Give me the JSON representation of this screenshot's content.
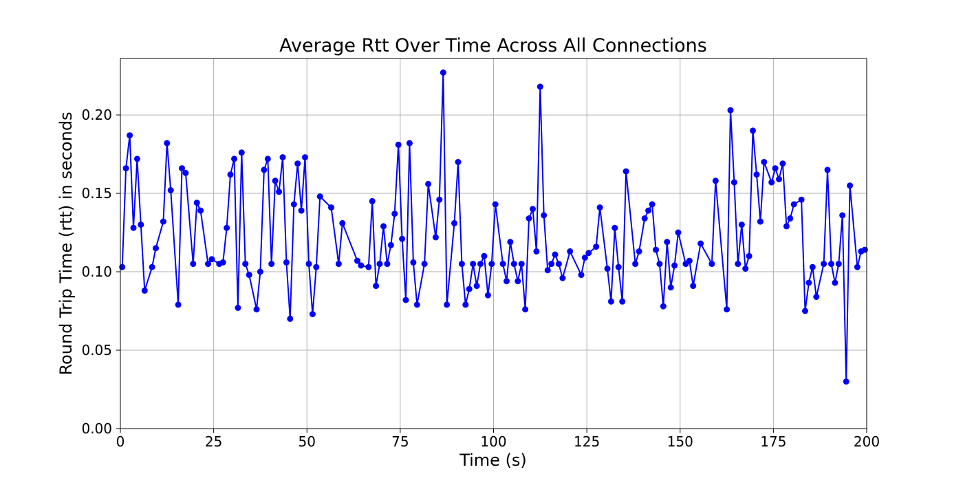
{
  "chart_data": {
    "type": "line",
    "title": "Average Rtt Over Time Across All Connections",
    "xlabel": "Time (s)",
    "ylabel": "Round Trip Time (rtt) in seconds",
    "xlim": [
      0,
      200
    ],
    "ylim": [
      0,
      0.236
    ],
    "xticks": [
      0,
      25,
      50,
      75,
      100,
      125,
      150,
      175,
      200
    ],
    "yticks": [
      0.0,
      0.05,
      0.1,
      0.15,
      0.2
    ],
    "xtick_labels": [
      "0",
      "25",
      "50",
      "75",
      "100",
      "125",
      "150",
      "175",
      "200"
    ],
    "ytick_labels": [
      "0.00",
      "0.05",
      "0.10",
      "0.15",
      "0.20"
    ],
    "grid": true,
    "series": [
      {
        "color": "#0000ff",
        "marker": "circle",
        "points": [
          [
            0.5,
            0.103
          ],
          [
            1.5,
            0.166
          ],
          [
            2.5,
            0.187
          ],
          [
            3.5,
            0.128
          ],
          [
            4.5,
            0.172
          ],
          [
            5.5,
            0.13
          ],
          [
            6.5,
            0.088
          ],
          [
            8.5,
            0.103
          ],
          [
            9.5,
            0.115
          ],
          [
            11.5,
            0.132
          ],
          [
            12.5,
            0.182
          ],
          [
            13.5,
            0.152
          ],
          [
            15.5,
            0.079
          ],
          [
            16.5,
            0.166
          ],
          [
            17.5,
            0.163
          ],
          [
            19.5,
            0.105
          ],
          [
            20.5,
            0.144
          ],
          [
            21.5,
            0.139
          ],
          [
            23.5,
            0.105
          ],
          [
            24.5,
            0.108
          ],
          [
            26.5,
            0.105
          ],
          [
            27.5,
            0.106
          ],
          [
            28.5,
            0.128
          ],
          [
            29.5,
            0.162
          ],
          [
            30.5,
            0.172
          ],
          [
            31.5,
            0.077
          ],
          [
            32.5,
            0.176
          ],
          [
            33.5,
            0.105
          ],
          [
            34.5,
            0.098
          ],
          [
            36.5,
            0.076
          ],
          [
            37.5,
            0.1
          ],
          [
            38.5,
            0.165
          ],
          [
            39.5,
            0.172
          ],
          [
            40.5,
            0.105
          ],
          [
            41.5,
            0.158
          ],
          [
            42.5,
            0.151
          ],
          [
            43.5,
            0.173
          ],
          [
            44.5,
            0.106
          ],
          [
            45.5,
            0.07
          ],
          [
            46.5,
            0.143
          ],
          [
            47.5,
            0.169
          ],
          [
            48.5,
            0.139
          ],
          [
            49.5,
            0.173
          ],
          [
            50.5,
            0.105
          ],
          [
            51.5,
            0.073
          ],
          [
            52.5,
            0.103
          ],
          [
            53.5,
            0.148
          ],
          [
            56.5,
            0.141
          ],
          [
            58.5,
            0.105
          ],
          [
            59.5,
            0.131
          ],
          [
            63.5,
            0.107
          ],
          [
            64.5,
            0.104
          ],
          [
            66.5,
            0.103
          ],
          [
            67.5,
            0.145
          ],
          [
            68.5,
            0.091
          ],
          [
            69.5,
            0.105
          ],
          [
            70.5,
            0.129
          ],
          [
            71.5,
            0.105
          ],
          [
            72.5,
            0.117
          ],
          [
            73.5,
            0.137
          ],
          [
            74.5,
            0.181
          ],
          [
            75.5,
            0.121
          ],
          [
            76.5,
            0.082
          ],
          [
            77.5,
            0.182
          ],
          [
            78.5,
            0.106
          ],
          [
            79.5,
            0.079
          ],
          [
            81.5,
            0.105
          ],
          [
            82.5,
            0.156
          ],
          [
            84.5,
            0.122
          ],
          [
            85.5,
            0.146
          ],
          [
            86.5,
            0.227
          ],
          [
            87.5,
            0.079
          ],
          [
            89.5,
            0.131
          ],
          [
            90.5,
            0.17
          ],
          [
            91.5,
            0.105
          ],
          [
            92.5,
            0.079
          ],
          [
            93.5,
            0.089
          ],
          [
            94.5,
            0.105
          ],
          [
            95.5,
            0.091
          ],
          [
            96.5,
            0.105
          ],
          [
            97.5,
            0.11
          ],
          [
            98.5,
            0.085
          ],
          [
            99.5,
            0.105
          ],
          [
            100.5,
            0.143
          ],
          [
            102.5,
            0.105
          ],
          [
            103.5,
            0.094
          ],
          [
            104.5,
            0.119
          ],
          [
            105.5,
            0.105
          ],
          [
            106.5,
            0.094
          ],
          [
            107.5,
            0.105
          ],
          [
            108.5,
            0.076
          ],
          [
            109.5,
            0.134
          ],
          [
            110.5,
            0.14
          ],
          [
            111.5,
            0.113
          ],
          [
            112.5,
            0.218
          ],
          [
            113.5,
            0.136
          ],
          [
            114.5,
            0.101
          ],
          [
            115.5,
            0.105
          ],
          [
            116.5,
            0.111
          ],
          [
            117.5,
            0.105
          ],
          [
            118.5,
            0.096
          ],
          [
            120.5,
            0.113
          ],
          [
            123.5,
            0.098
          ],
          [
            124.5,
            0.109
          ],
          [
            125.5,
            0.112
          ],
          [
            127.5,
            0.116
          ],
          [
            128.5,
            0.141
          ],
          [
            130.5,
            0.102
          ],
          [
            131.5,
            0.081
          ],
          [
            132.5,
            0.128
          ],
          [
            133.5,
            0.103
          ],
          [
            134.5,
            0.081
          ],
          [
            135.5,
            0.164
          ],
          [
            138.0,
            0.105
          ],
          [
            139.0,
            0.113
          ],
          [
            140.5,
            0.134
          ],
          [
            141.5,
            0.139
          ],
          [
            142.5,
            0.143
          ],
          [
            143.5,
            0.114
          ],
          [
            144.5,
            0.105
          ],
          [
            145.5,
            0.078
          ],
          [
            146.5,
            0.119
          ],
          [
            147.5,
            0.09
          ],
          [
            148.5,
            0.104
          ],
          [
            149.5,
            0.125
          ],
          [
            151.5,
            0.105
          ],
          [
            152.5,
            0.107
          ],
          [
            153.5,
            0.091
          ],
          [
            155.5,
            0.118
          ],
          [
            158.5,
            0.105
          ],
          [
            159.5,
            0.158
          ],
          [
            162.5,
            0.076
          ],
          [
            163.5,
            0.203
          ],
          [
            164.5,
            0.157
          ],
          [
            165.5,
            0.105
          ],
          [
            166.5,
            0.13
          ],
          [
            167.5,
            0.102
          ],
          [
            168.5,
            0.11
          ],
          [
            169.5,
            0.19
          ],
          [
            170.5,
            0.162
          ],
          [
            171.5,
            0.132
          ],
          [
            172.5,
            0.17
          ],
          [
            174.5,
            0.157
          ],
          [
            175.5,
            0.166
          ],
          [
            176.5,
            0.159
          ],
          [
            177.5,
            0.169
          ],
          [
            178.5,
            0.129
          ],
          [
            179.5,
            0.134
          ],
          [
            180.5,
            0.143
          ],
          [
            182.5,
            0.146
          ],
          [
            183.5,
            0.075
          ],
          [
            184.5,
            0.093
          ],
          [
            185.5,
            0.103
          ],
          [
            186.5,
            0.084
          ],
          [
            188.5,
            0.105
          ],
          [
            189.5,
            0.165
          ],
          [
            190.5,
            0.105
          ],
          [
            191.5,
            0.093
          ],
          [
            192.5,
            0.105
          ],
          [
            193.5,
            0.136
          ],
          [
            194.5,
            0.03
          ],
          [
            195.5,
            0.155
          ],
          [
            197.5,
            0.103
          ],
          [
            198.5,
            0.113
          ],
          [
            199.5,
            0.114
          ]
        ]
      }
    ]
  }
}
